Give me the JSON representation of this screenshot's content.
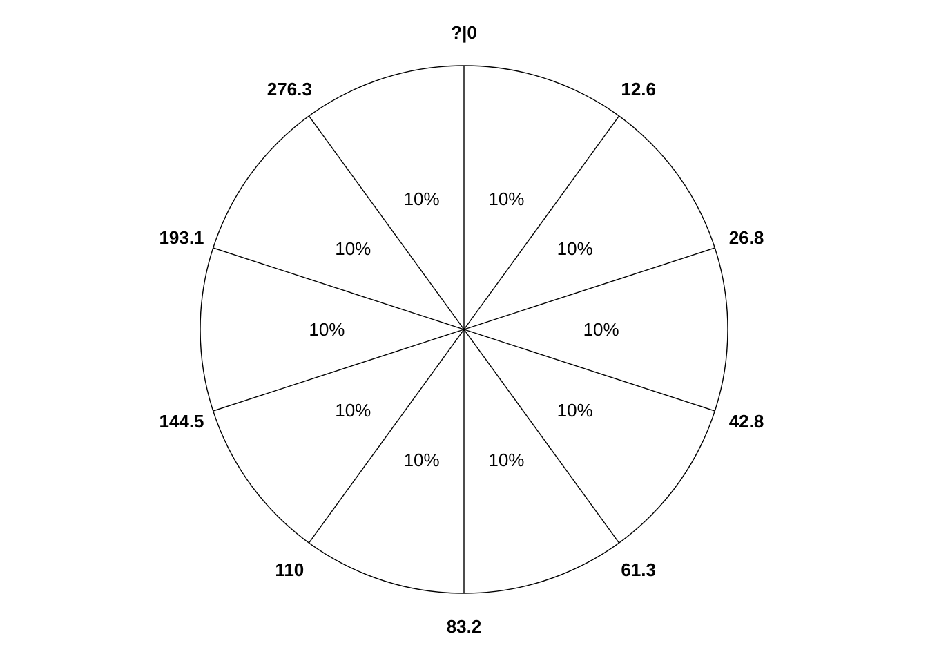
{
  "chart_data": {
    "type": "pie",
    "title": "",
    "boundary_labels": [
      "?|0",
      "12.6",
      "26.8",
      "42.8",
      "61.3",
      "83.2",
      "110",
      "144.5",
      "193.1",
      "276.3"
    ],
    "slices": [
      {
        "value": 10,
        "label": "10%"
      },
      {
        "value": 10,
        "label": "10%"
      },
      {
        "value": 10,
        "label": "10%"
      },
      {
        "value": 10,
        "label": "10%"
      },
      {
        "value": 10,
        "label": "10%"
      },
      {
        "value": 10,
        "label": "10%"
      },
      {
        "value": 10,
        "label": "10%"
      },
      {
        "value": 10,
        "label": "10%"
      },
      {
        "value": 10,
        "label": "10%"
      },
      {
        "value": 10,
        "label": "10%"
      }
    ],
    "start_angle": "top",
    "direction": "clockwise",
    "line_color": "#000000",
    "fill_color": "#ffffff"
  }
}
